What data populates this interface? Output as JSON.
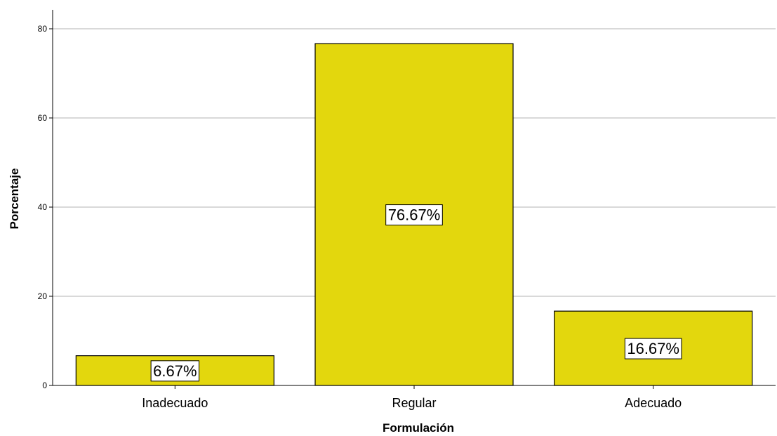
{
  "chart_data": {
    "type": "bar",
    "categories": [
      "Inadecuado",
      "Regular",
      "Adecuado"
    ],
    "values": [
      6.67,
      76.67,
      16.67
    ],
    "data_labels": [
      "6.67%",
      "76.67%",
      "16.67%"
    ],
    "title": "",
    "xlabel": "Formulación",
    "ylabel": "Porcentaje",
    "ylim": [
      0,
      80
    ],
    "yticks": [
      0,
      20,
      40,
      60,
      80
    ],
    "grid": true,
    "legend": "none",
    "colors": {
      "bar_fill": "#e3d70d",
      "bar_stroke": "#000000",
      "grid": "#b3b3b3",
      "label_box": "#ffffff"
    }
  }
}
